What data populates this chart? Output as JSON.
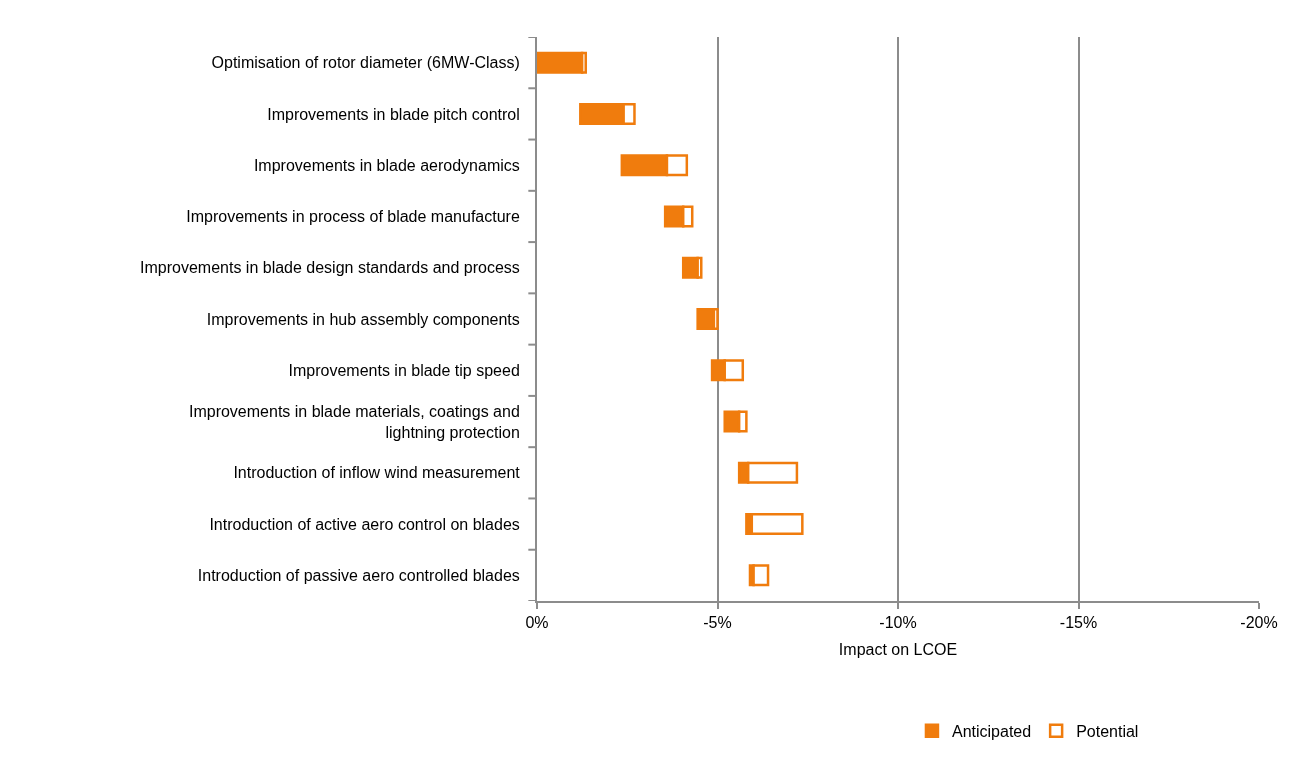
{
  "chart_data": {
    "type": "bar",
    "orientation": "horizontal",
    "stacked": false,
    "xlabel": "Impact on LCOE",
    "categories": [
      "Optimisation of rotor diameter (6MW-Class)",
      "Improvements in blade pitch control",
      "Improvements in blade aerodynamics",
      "Improvements in process of blade manufacture",
      "Improvements in blade design standards and process",
      "Improvements in hub assembly components",
      "Improvements in blade tip speed",
      "Improvements in blade materials, coatings and\nlightning protection",
      "Introduction of inflow wind measurement",
      "Introduction of active aero control on blades",
      "Introduction of passive aero controlled blades"
    ],
    "series": [
      {
        "name": "Anticipated",
        "color": "#f07c0d",
        "base": [
          0,
          -1.2,
          -2.35,
          -3.55,
          -4.05,
          -4.45,
          -4.85,
          -5.2,
          -5.6,
          -5.8,
          -5.9
        ],
        "values": [
          -1.25,
          -1.2,
          -1.25,
          -0.5,
          -0.4,
          -0.45,
          -0.35,
          -0.4,
          -0.25,
          -0.15,
          -0.1
        ]
      },
      {
        "name": "Potential",
        "color": "#f07c0d",
        "base": [
          -1.25,
          -2.4,
          -3.6,
          -4.05,
          -4.45,
          -4.9,
          -5.2,
          -5.6,
          -5.85,
          -5.95,
          -6.0
        ],
        "values": [
          -0.1,
          -0.3,
          -0.55,
          -0.25,
          -0.1,
          -0.1,
          -0.5,
          -0.2,
          -1.35,
          -1.4,
          -0.4
        ]
      }
    ],
    "xlim": [
      0,
      -20
    ],
    "xticks": [
      {
        "value": 0,
        "label": "0%"
      },
      {
        "value": -5,
        "label": "-5%"
      },
      {
        "value": -10,
        "label": "-10%"
      },
      {
        "value": -15,
        "label": "-15%"
      },
      {
        "value": -20,
        "label": "-20%"
      }
    ],
    "grid": "x",
    "legend": "bottom"
  }
}
